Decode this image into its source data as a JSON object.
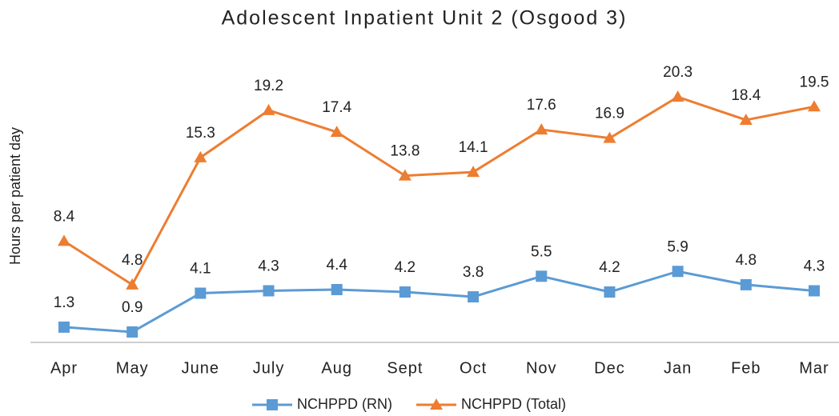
{
  "chart_data": {
    "type": "line",
    "title": "Adolescent Inpatient Unit 2 (Osgood 3)",
    "y_label": "Hours per patient day",
    "categories": [
      "Apr",
      "May",
      "June",
      "July",
      "Aug",
      "Sept",
      "Oct",
      "Nov",
      "Dec",
      "Jan",
      "Feb",
      "Mar"
    ],
    "series": [
      {
        "name": "NCHPPD (RN)",
        "color": "#5b9bd5",
        "marker": "square",
        "values": [
          1.3,
          0.9,
          4.1,
          4.3,
          4.4,
          4.2,
          3.8,
          5.5,
          4.2,
          5.9,
          4.8,
          4.3
        ]
      },
      {
        "name": "NCHPPD (Total)",
        "color": "#ed7d31",
        "marker": "triangle",
        "values": [
          8.4,
          4.8,
          15.3,
          19.2,
          17.4,
          13.8,
          14.1,
          17.6,
          16.9,
          20.3,
          18.4,
          19.5
        ]
      }
    ],
    "ylim": [
      0,
      25
    ],
    "legend": "bottom",
    "data_labels": true
  }
}
